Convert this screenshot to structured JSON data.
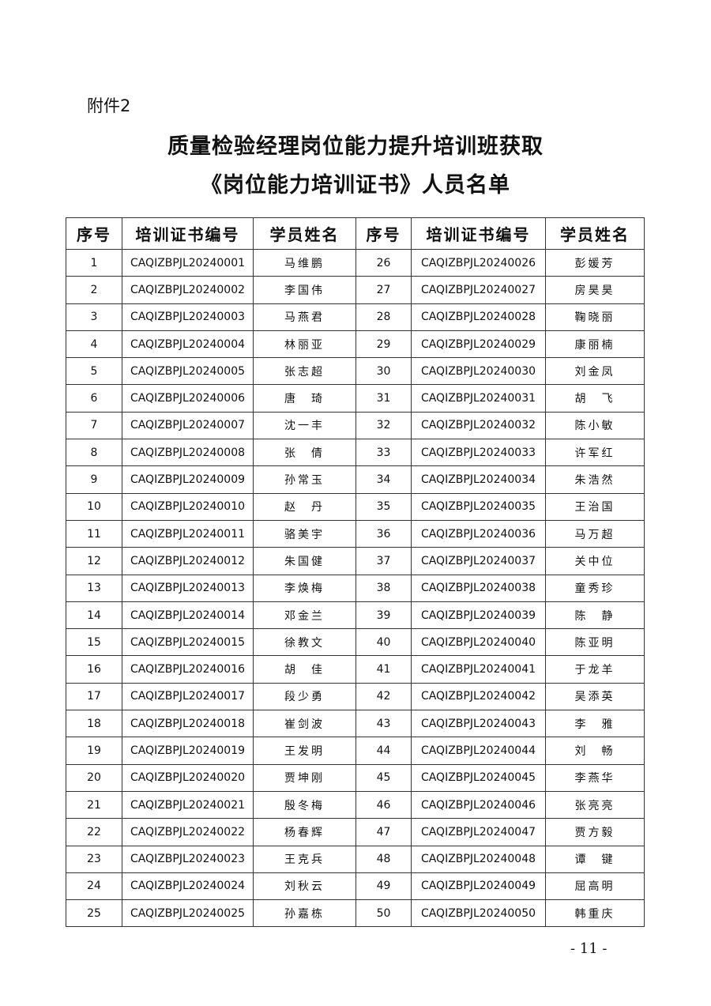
{
  "attachment_label": "附件2",
  "title_line1": "质量检验经理岗位能力提升培训班获取",
  "title_line2": "《岗位能力培训证书》人员名单",
  "table": {
    "headers": [
      "序号",
      "培训证书编号",
      "学员姓名",
      "序号",
      "培训证书编号",
      "学员姓名"
    ],
    "rows": [
      [
        "1",
        "CAQIZBPJL20240001",
        "马维鹏",
        "26",
        "CAQIZBPJL20240026",
        "彭媛芳"
      ],
      [
        "2",
        "CAQIZBPJL20240002",
        "李国伟",
        "27",
        "CAQIZBPJL20240027",
        "房昊昊"
      ],
      [
        "3",
        "CAQIZBPJL20240003",
        "马燕君",
        "28",
        "CAQIZBPJL20240028",
        "鞠晓丽"
      ],
      [
        "4",
        "CAQIZBPJL20240004",
        "林丽亚",
        "29",
        "CAQIZBPJL20240029",
        "康丽楠"
      ],
      [
        "5",
        "CAQIZBPJL20240005",
        "张志超",
        "30",
        "CAQIZBPJL20240030",
        "刘金凤"
      ],
      [
        "6",
        "CAQIZBPJL20240006",
        "唐　琦",
        "31",
        "CAQIZBPJL20240031",
        "胡　飞"
      ],
      [
        "7",
        "CAQIZBPJL20240007",
        "沈一丰",
        "32",
        "CAQIZBPJL20240032",
        "陈小敏"
      ],
      [
        "8",
        "CAQIZBPJL20240008",
        "张　倩",
        "33",
        "CAQIZBPJL20240033",
        "许军红"
      ],
      [
        "9",
        "CAQIZBPJL20240009",
        "孙常玉",
        "34",
        "CAQIZBPJL20240034",
        "朱浩然"
      ],
      [
        "10",
        "CAQIZBPJL20240010",
        "赵　丹",
        "35",
        "CAQIZBPJL20240035",
        "王治国"
      ],
      [
        "11",
        "CAQIZBPJL20240011",
        "骆美宇",
        "36",
        "CAQIZBPJL20240036",
        "马万超"
      ],
      [
        "12",
        "CAQIZBPJL20240012",
        "朱国健",
        "37",
        "CAQIZBPJL20240037",
        "关中位"
      ],
      [
        "13",
        "CAQIZBPJL20240013",
        "李焕梅",
        "38",
        "CAQIZBPJL20240038",
        "童秀珍"
      ],
      [
        "14",
        "CAQIZBPJL20240014",
        "邓金兰",
        "39",
        "CAQIZBPJL20240039",
        "陈　静"
      ],
      [
        "15",
        "CAQIZBPJL20240015",
        "徐教文",
        "40",
        "CAQIZBPJL20240040",
        "陈亚明"
      ],
      [
        "16",
        "CAQIZBPJL20240016",
        "胡　佳",
        "41",
        "CAQIZBPJL20240041",
        "于龙羊"
      ],
      [
        "17",
        "CAQIZBPJL20240017",
        "段少勇",
        "42",
        "CAQIZBPJL20240042",
        "吴添英"
      ],
      [
        "18",
        "CAQIZBPJL20240018",
        "崔剑波",
        "43",
        "CAQIZBPJL20240043",
        "李　雅"
      ],
      [
        "19",
        "CAQIZBPJL20240019",
        "王发明",
        "44",
        "CAQIZBPJL20240044",
        "刘　畅"
      ],
      [
        "20",
        "CAQIZBPJL20240020",
        "贾坤刚",
        "45",
        "CAQIZBPJL20240045",
        "李燕华"
      ],
      [
        "21",
        "CAQIZBPJL20240021",
        "殷冬梅",
        "46",
        "CAQIZBPJL20240046",
        "张亮亮"
      ],
      [
        "22",
        "CAQIZBPJL20240022",
        "杨春辉",
        "47",
        "CAQIZBPJL20240047",
        "贾方毅"
      ],
      [
        "23",
        "CAQIZBPJL20240023",
        "王克兵",
        "48",
        "CAQIZBPJL20240048",
        "谭　键"
      ],
      [
        "24",
        "CAQIZBPJL20240024",
        "刘秋云",
        "49",
        "CAQIZBPJL20240049",
        "屈高明"
      ],
      [
        "25",
        "CAQIZBPJL20240025",
        "孙嘉栋",
        "50",
        "CAQIZBPJL20240050",
        "韩重庆"
      ]
    ]
  },
  "page_number": "- 11 -"
}
